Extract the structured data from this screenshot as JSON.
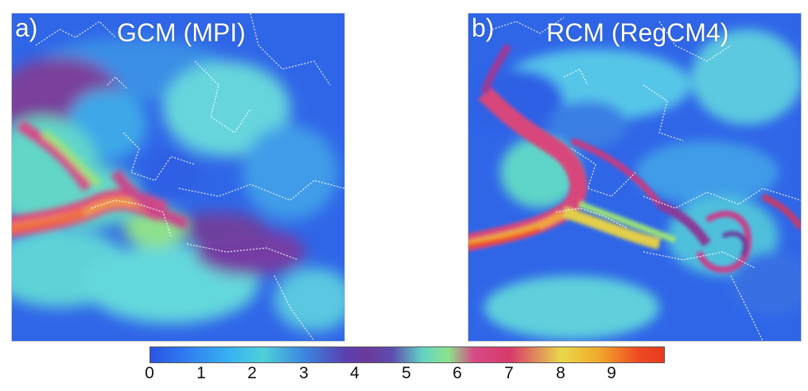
{
  "panels": [
    {
      "letter": "a)",
      "title": "GCM (MPI)"
    },
    {
      "letter": "b)",
      "title": "RCM (RegCM4)"
    }
  ],
  "colorbar": {
    "ticks": [
      "0",
      "1",
      "2",
      "3",
      "4",
      "5",
      "6",
      "7",
      "8",
      "9"
    ],
    "colors": [
      "#2b52e6",
      "#39b5f0",
      "#3b86e0",
      "#6a3a9a",
      "#63d3c4",
      "#d74a86",
      "#e8d84a",
      "#e83a1f"
    ]
  }
}
